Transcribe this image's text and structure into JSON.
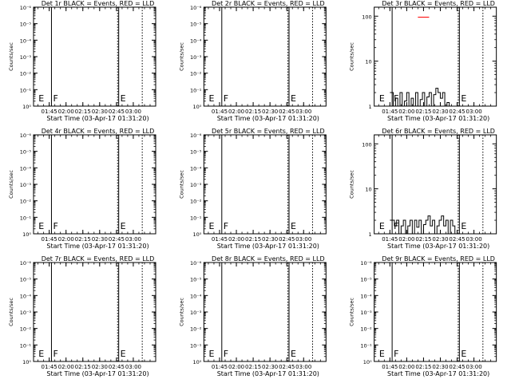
{
  "chart_data": [
    {
      "type": "line",
      "id": "det1r",
      "title": "Det 1r BLACK = Events, RED = LLD",
      "xlabel": "Start Time (03-Apr-17 01:31:20)",
      "ylabel": "Counts/sec",
      "yscale": "log",
      "ytick_labels": [
        "10⁰",
        "10⁻¹",
        "10⁻²",
        "10⁻³",
        "10⁻⁴",
        "10⁻⁵",
        "10⁻⁶"
      ],
      "xticks": [
        "01:45",
        "02:00",
        "02:15",
        "02:30",
        "02:45",
        "03:00"
      ],
      "markers": [
        {
          "label": "E",
          "time": "01:34"
        },
        {
          "label": "F",
          "time": "01:47"
        },
        {
          "label": "E",
          "time": "02:47"
        }
      ],
      "series": []
    },
    {
      "type": "line",
      "id": "det2r",
      "title": "Det 2r BLACK = Events, RED = LLD",
      "xlabel": "Start Time (03-Apr-17 01:31:20)",
      "ylabel": "Counts/sec",
      "yscale": "log",
      "ytick_labels": [
        "10⁰",
        "10⁻¹",
        "10⁻²",
        "10⁻³",
        "10⁻⁴",
        "10⁻⁵",
        "10⁻⁶"
      ],
      "xticks": [
        "01:45",
        "02:00",
        "02:15",
        "02:30",
        "02:45",
        "03:00"
      ],
      "markers": [
        {
          "label": "E",
          "time": "01:34"
        },
        {
          "label": "F",
          "time": "01:47"
        },
        {
          "label": "E",
          "time": "02:47"
        }
      ],
      "series": []
    },
    {
      "type": "line",
      "id": "det3r",
      "title": "Det 3r BLACK = Events, RED = LLD",
      "xlabel": "Start Time (03-Apr-17 01:31:20)",
      "ylabel": "Counts/sec",
      "yscale": "log",
      "ytick_labels": [
        "1",
        "10",
        "100"
      ],
      "xticks": [
        "01:45",
        "02:00",
        "02:15",
        "02:30",
        "02:45",
        "03:00"
      ],
      "markers": [
        {
          "label": "E",
          "time": "01:34"
        },
        {
          "label": "F",
          "time": "01:47"
        },
        {
          "label": "E",
          "time": "02:47"
        }
      ],
      "series": [
        {
          "color": "#000000",
          "x": [
            "01:45",
            "01:47",
            "01:48",
            "01:50",
            "01:52",
            "01:54",
            "01:56",
            "01:58",
            "02:00",
            "02:02",
            "02:04",
            "02:06",
            "02:08",
            "02:10",
            "02:12",
            "02:14",
            "02:16",
            "02:18",
            "02:20",
            "02:22",
            "02:24",
            "02:26",
            "02:28",
            "02:30",
            "02:32",
            "02:34",
            "02:36",
            "02:38",
            "02:40"
          ],
          "values": [
            2,
            2,
            1,
            1.5,
            1,
            2,
            1,
            1.3,
            2,
            1,
            1.5,
            1,
            2,
            1,
            1.4,
            2,
            1,
            1.6,
            2,
            1,
            1.8,
            2.5,
            2,
            1.5,
            2,
            1,
            1.2,
            1,
            1
          ]
        },
        {
          "color": "#ff0000",
          "x": [
            "02:10",
            "02:20"
          ],
          "values": [
            95,
            95
          ]
        }
      ]
    },
    {
      "type": "line",
      "id": "det4r",
      "title": "Det 4r BLACK = Events, RED = LLD",
      "xlabel": "Start Time (03-Apr-17 01:31:20)",
      "ylabel": "Counts/sec",
      "yscale": "log",
      "ytick_labels": [
        "10⁰",
        "10⁻¹",
        "10⁻²",
        "10⁻³",
        "10⁻⁴",
        "10⁻⁵",
        "10⁻⁶"
      ],
      "xticks": [
        "01:45",
        "02:00",
        "02:15",
        "02:30",
        "02:45",
        "03:00"
      ],
      "markers": [
        {
          "label": "E",
          "time": "01:34"
        },
        {
          "label": "F",
          "time": "01:47"
        },
        {
          "label": "E",
          "time": "02:47"
        }
      ],
      "series": []
    },
    {
      "type": "line",
      "id": "det5r",
      "title": "Det 5r BLACK = Events, RED = LLD",
      "xlabel": "Start Time (03-Apr-17 01:31:20)",
      "ylabel": "Counts/sec",
      "yscale": "log",
      "ytick_labels": [
        "10⁰",
        "10⁻¹",
        "10⁻²",
        "10⁻³",
        "10⁻⁴",
        "10⁻⁵",
        "10⁻⁶"
      ],
      "xticks": [
        "01:45",
        "02:00",
        "02:15",
        "02:30",
        "02:45",
        "03:00"
      ],
      "markers": [
        {
          "label": "E",
          "time": "01:34"
        },
        {
          "label": "F",
          "time": "01:47"
        },
        {
          "label": "E",
          "time": "02:47"
        }
      ],
      "series": []
    },
    {
      "type": "line",
      "id": "det6r",
      "title": "Det 6r BLACK = Events, RED = LLD",
      "xlabel": "Start Time (03-Apr-17 01:31:20)",
      "ylabel": "Counts/sec",
      "yscale": "log",
      "ytick_labels": [
        "1",
        "10",
        "100"
      ],
      "xticks": [
        "01:45",
        "02:00",
        "02:15",
        "02:30",
        "02:45",
        "03:00"
      ],
      "markers": [
        {
          "label": "E",
          "time": "01:34"
        },
        {
          "label": "F",
          "time": "01:47"
        },
        {
          "label": "E",
          "time": "02:47"
        }
      ],
      "series": [
        {
          "color": "#000000",
          "x": [
            "01:45",
            "01:47",
            "01:49",
            "01:51",
            "01:53",
            "01:55",
            "01:57",
            "01:59",
            "02:01",
            "02:03",
            "02:05",
            "02:07",
            "02:09",
            "02:11",
            "02:13",
            "02:15",
            "02:17",
            "02:19",
            "02:21",
            "02:23",
            "02:25",
            "02:27",
            "02:29",
            "02:31",
            "02:33",
            "02:35",
            "02:37",
            "02:39",
            "02:41",
            "02:43"
          ],
          "values": [
            2,
            2,
            1.5,
            2,
            1,
            1.5,
            2,
            1,
            1.5,
            2,
            1,
            2,
            1.4,
            2,
            1,
            1.6,
            2,
            2.5,
            1.5,
            2,
            1,
            1.5,
            2,
            2.5,
            1.5,
            2,
            1,
            2,
            1.5,
            1
          ]
        }
      ]
    },
    {
      "type": "line",
      "id": "det7r",
      "title": "Det 7r BLACK = Events, RED = LLD",
      "xlabel": "Start Time (03-Apr-17 01:31:20)",
      "ylabel": "Counts/sec",
      "yscale": "log",
      "ytick_labels": [
        "10⁰",
        "10⁻¹",
        "10⁻²",
        "10⁻³",
        "10⁻⁴",
        "10⁻⁵",
        "10⁻⁶"
      ],
      "xticks": [
        "01:45",
        "02:00",
        "02:15",
        "02:30",
        "02:45",
        "03:00"
      ],
      "markers": [
        {
          "label": "E",
          "time": "01:34"
        },
        {
          "label": "F",
          "time": "01:47"
        },
        {
          "label": "E",
          "time": "02:47"
        }
      ],
      "series": []
    },
    {
      "type": "line",
      "id": "det8r",
      "title": "Det 8r BLACK = Events, RED = LLD",
      "xlabel": "Start Time (03-Apr-17 01:31:20)",
      "ylabel": "Counts/sec",
      "yscale": "log",
      "ytick_labels": [
        "10⁰",
        "10⁻¹",
        "10⁻²",
        "10⁻³",
        "10⁻⁴",
        "10⁻⁵",
        "10⁻⁶"
      ],
      "xticks": [
        "01:45",
        "02:00",
        "02:15",
        "02:30",
        "02:45",
        "03:00"
      ],
      "markers": [
        {
          "label": "E",
          "time": "01:34"
        },
        {
          "label": "F",
          "time": "01:47"
        },
        {
          "label": "E",
          "time": "02:47"
        }
      ],
      "series": []
    },
    {
      "type": "line",
      "id": "det9r",
      "title": "Det 9r BLACK = Events, RED = LLD",
      "xlabel": "Start Time (03-Apr-17 01:31:20)",
      "ylabel": "Counts/sec",
      "yscale": "log",
      "ytick_labels": [
        "10⁰",
        "10⁻¹",
        "10⁻²",
        "10⁻³",
        "10⁻⁴",
        "10⁻⁵",
        "10⁻⁶"
      ],
      "xticks": [
        "01:45",
        "02:00",
        "02:15",
        "02:30",
        "02:45",
        "03:00"
      ],
      "markers": [
        {
          "label": "E",
          "time": "01:34"
        },
        {
          "label": "F",
          "time": "01:47"
        },
        {
          "label": "E",
          "time": "02:47"
        }
      ],
      "series": []
    }
  ]
}
